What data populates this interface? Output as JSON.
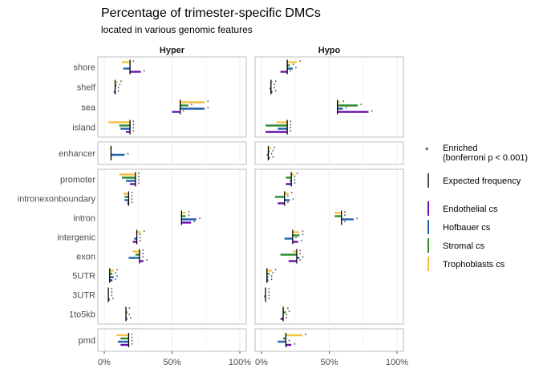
{
  "chart_data": {
    "type": "bar",
    "orientation": "horizontal",
    "title": "Percentage of trimester-specific DMCs",
    "subtitle": "located in various genomic features",
    "facets": [
      "Hyper",
      "Hypo"
    ],
    "row_groups": [
      [
        "shore",
        "shelf",
        "sea",
        "island"
      ],
      [
        "enhancer"
      ],
      [
        "promoter",
        "intronexonboundary",
        "intron",
        "intergenic",
        "exon",
        "5UTR",
        "3UTR",
        "1to5kb"
      ],
      [
        "pmd"
      ]
    ],
    "x_ticks": [
      "0%",
      "50%",
      "100%"
    ],
    "xlim": [
      0,
      100
    ],
    "series": [
      {
        "name": "Endothelial cs",
        "color": "#6A0DAD"
      },
      {
        "name": "Hofbauer cs",
        "color": "#1F5FAD"
      },
      {
        "name": "Stromal cs",
        "color": "#2E8B2E"
      },
      {
        "name": "Trophoblasts cs",
        "color": "#F5C242"
      }
    ],
    "series_order_top_to_bottom": [
      "Trophoblasts cs",
      "Stromal cs",
      "Hofbauer cs",
      "Endothelial cs"
    ],
    "data": {
      "Hyper": {
        "shore": {
          "expected": 19,
          "values": {
            "Trophoblasts cs": 13,
            "Stromal cs": 19,
            "Hofbauer cs": 14,
            "Endothelial cs": 27
          },
          "enriched": [
            1,
            0,
            0,
            1
          ]
        },
        "shelf": {
          "expected": 8,
          "values": {
            "Trophoblasts cs": 10,
            "Stromal cs": 9,
            "Hofbauer cs": 8,
            "Endothelial cs": 7
          },
          "enriched": [
            1,
            1,
            1,
            1
          ]
        },
        "sea": {
          "expected": 56,
          "values": {
            "Trophoblasts cs": 74,
            "Stromal cs": 62,
            "Hofbauer cs": 74,
            "Endothelial cs": 50
          },
          "enriched": [
            1,
            1,
            1,
            1
          ]
        },
        "island": {
          "expected": 19,
          "values": {
            "Trophoblasts cs": 3,
            "Stromal cs": 11,
            "Hofbauer cs": 12,
            "Endothelial cs": 16
          },
          "enriched": [
            1,
            1,
            1,
            1
          ]
        },
        "enhancer": {
          "expected": 5,
          "values": {
            "Trophoblasts cs": 4,
            "Stromal cs": 5,
            "Hofbauer cs": 15,
            "Endothelial cs": 5
          },
          "enriched": [
            0,
            0,
            1,
            0
          ]
        },
        "promoter": {
          "expected": 23,
          "values": {
            "Trophoblasts cs": 11,
            "Stromal cs": 13,
            "Hofbauer cs": 16,
            "Endothelial cs": 19
          },
          "enriched": [
            1,
            1,
            1,
            1
          ]
        },
        "intronexonboundary": {
          "expected": 18,
          "values": {
            "Trophoblasts cs": 14,
            "Stromal cs": 15,
            "Hofbauer cs": 15,
            "Endothelial cs": 17
          },
          "enriched": [
            1,
            1,
            1,
            1
          ]
        },
        "intron": {
          "expected": 57,
          "values": {
            "Trophoblasts cs": 60,
            "Stromal cs": 60,
            "Hofbauer cs": 68,
            "Endothelial cs": 64
          },
          "enriched": [
            1,
            1,
            1,
            1
          ]
        },
        "intergenic": {
          "expected": 24,
          "values": {
            "Trophoblasts cs": 27,
            "Stromal cs": 24,
            "Hofbauer cs": 22,
            "Endothelial cs": 21
          },
          "enriched": [
            1,
            1,
            1,
            1
          ]
        },
        "exon": {
          "expected": 26,
          "values": {
            "Trophoblasts cs": 21,
            "Stromal cs": 23,
            "Hofbauer cs": 18,
            "Endothelial cs": 29
          },
          "enriched": [
            1,
            1,
            1,
            1
          ]
        },
        "5UTR": {
          "expected": 4,
          "values": {
            "Trophoblasts cs": 7,
            "Stromal cs": 6,
            "Hofbauer cs": 7,
            "Endothelial cs": 6
          },
          "enriched": [
            1,
            1,
            1,
            1
          ]
        },
        "3UTR": {
          "expected": 3,
          "values": {
            "Trophoblasts cs": 3,
            "Stromal cs": 3,
            "Hofbauer cs": 3,
            "Endothelial cs": 4
          },
          "enriched": [
            1,
            1,
            1,
            1
          ]
        },
        "1to5kb": {
          "expected": 16,
          "values": {
            "Trophoblasts cs": 16,
            "Stromal cs": 17,
            "Hofbauer cs": 16,
            "Endothelial cs": 17
          },
          "enriched": [
            1,
            0,
            1,
            1
          ]
        },
        "pmd": {
          "expected": 18,
          "values": {
            "Trophoblasts cs": 9,
            "Stromal cs": 12,
            "Hofbauer cs": 10,
            "Endothelial cs": 12
          },
          "enriched": [
            1,
            1,
            1,
            1
          ]
        }
      },
      "Hypo": {
        "shore": {
          "expected": 19,
          "values": {
            "Trophoblasts cs": 26,
            "Stromal cs": 21,
            "Hofbauer cs": 23,
            "Endothelial cs": 14
          },
          "enriched": [
            1,
            1,
            1,
            1
          ]
        },
        "shelf": {
          "expected": 7,
          "values": {
            "Trophoblasts cs": 8,
            "Stromal cs": 7,
            "Hofbauer cs": 6,
            "Endothelial cs": 8
          },
          "enriched": [
            1,
            1,
            1,
            1
          ]
        },
        "sea": {
          "expected": 56,
          "values": {
            "Trophoblasts cs": 58,
            "Stromal cs": 71,
            "Hofbauer cs": 60,
            "Endothelial cs": 79
          },
          "enriched": [
            1,
            1,
            1,
            1
          ]
        },
        "island": {
          "expected": 19,
          "values": {
            "Trophoblasts cs": 11,
            "Stromal cs": 3,
            "Hofbauer cs": 12,
            "Endothelial cs": 3
          },
          "enriched": [
            1,
            1,
            1,
            1
          ]
        },
        "enhancer": {
          "expected": 5,
          "values": {
            "Trophoblasts cs": 7,
            "Stromal cs": 6,
            "Hofbauer cs": 4,
            "Endothelial cs": 6
          },
          "enriched": [
            1,
            1,
            1,
            1
          ]
        },
        "promoter": {
          "expected": 22,
          "values": {
            "Trophoblasts cs": 24,
            "Stromal cs": 18,
            "Hofbauer cs": 21,
            "Endothelial cs": 18
          },
          "enriched": [
            1,
            1,
            1,
            1
          ]
        },
        "intronexonboundary": {
          "expected": 17,
          "values": {
            "Trophoblasts cs": 20,
            "Stromal cs": 10,
            "Hofbauer cs": 21,
            "Endothelial cs": 12
          },
          "enriched": [
            1,
            1,
            1,
            1
          ]
        },
        "intron": {
          "expected": 59,
          "values": {
            "Trophoblasts cs": 54,
            "Stromal cs": 54,
            "Hofbauer cs": 68,
            "Endothelial cs": 59
          },
          "enriched": [
            1,
            1,
            1,
            1
          ]
        },
        "intergenic": {
          "expected": 23,
          "values": {
            "Trophoblasts cs": 28,
            "Stromal cs": 28,
            "Hofbauer cs": 17,
            "Endothelial cs": 27
          },
          "enriched": [
            1,
            1,
            1,
            1
          ]
        },
        "exon": {
          "expected": 26,
          "values": {
            "Trophoblasts cs": 23,
            "Stromal cs": 14,
            "Hofbauer cs": 28,
            "Endothelial cs": 20
          },
          "enriched": [
            1,
            1,
            1,
            1
          ]
        },
        "5UTR": {
          "expected": 4,
          "values": {
            "Trophoblasts cs": 8,
            "Stromal cs": 6,
            "Hofbauer cs": 5,
            "Endothelial cs": 5
          },
          "enriched": [
            1,
            1,
            1,
            1
          ]
        },
        "3UTR": {
          "expected": 3,
          "values": {
            "Trophoblasts cs": 3,
            "Stromal cs": 3,
            "Hofbauer cs": 2,
            "Endothelial cs": 3
          },
          "enriched": [
            1,
            1,
            1,
            1
          ]
        },
        "1to5kb": {
          "expected": 16,
          "values": {
            "Trophoblasts cs": 17,
            "Stromal cs": 18,
            "Hofbauer cs": 16,
            "Endothelial cs": 14
          },
          "enriched": [
            1,
            1,
            1,
            1
          ]
        },
        "pmd": {
          "expected": 18,
          "values": {
            "Trophoblasts cs": 30,
            "Stromal cs": 16,
            "Hofbauer cs": 12,
            "Endothelial cs": 22
          },
          "enriched": [
            1,
            0,
            1,
            1
          ]
        }
      }
    },
    "legend": {
      "position": "right",
      "enriched_symbol": "*",
      "enriched_label_line1": "Enriched",
      "enriched_label_line2": "(bonferroni p < 0.001)",
      "expected_label": "Expected frequency"
    }
  }
}
